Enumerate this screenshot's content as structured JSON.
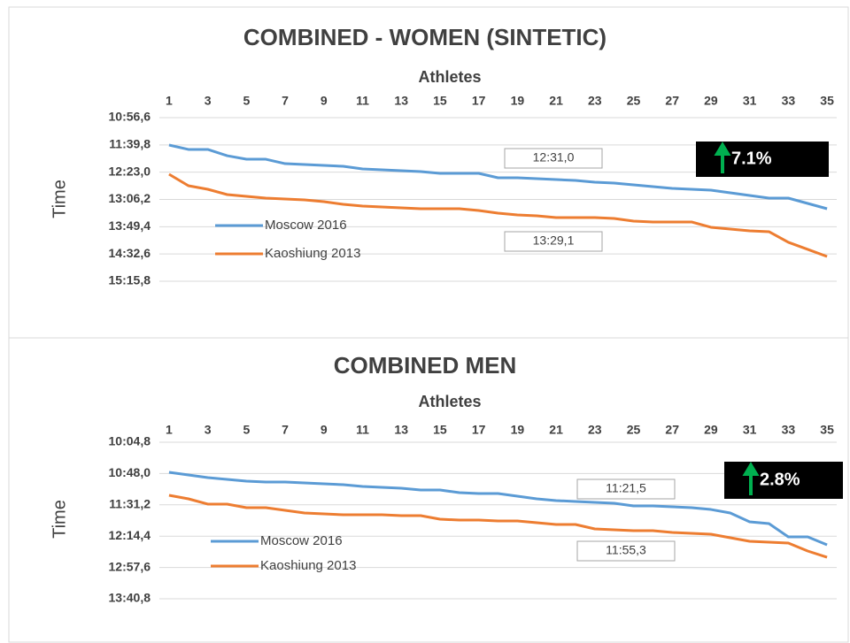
{
  "chart_data": [
    {
      "type": "line",
      "title": "COMBINED - WOMEN (SINTETIC)",
      "x_label": "Athletes",
      "y_label": "Time",
      "categories": [
        1,
        null,
        3,
        null,
        5,
        null,
        7,
        null,
        9,
        null,
        11,
        null,
        13,
        null,
        15,
        null,
        17,
        null,
        19,
        null,
        21,
        null,
        23,
        null,
        25,
        null,
        27,
        null,
        29,
        null,
        31,
        null,
        33,
        null,
        35
      ],
      "series": [
        {
          "name": "Moscow 2016",
          "color": "#5b9bd5",
          "values": [
            700.0,
            707.0,
            707.0,
            716.9,
            722.5,
            722.5,
            729.5,
            730.9,
            732.3,
            733.7,
            737.9,
            739.3,
            740.7,
            742.1,
            744.9,
            744.9,
            744.9,
            751.9,
            751.9,
            753.3,
            754.7,
            756.1,
            758.9,
            760.3,
            763.1,
            765.9,
            768.7,
            770.1,
            771.5,
            775.7,
            779.9,
            784.1,
            784.1,
            792.5,
            800.9
          ]
        },
        {
          "name": "Kaoshiung 2013",
          "color": "#ed7d31",
          "values": [
            746.3,
            764.5,
            770.1,
            778.5,
            781.3,
            784.1,
            785.5,
            786.9,
            789.7,
            793.9,
            796.7,
            798.1,
            799.5,
            800.9,
            800.9,
            800.9,
            803.7,
            807.9,
            810.7,
            812.1,
            814.9,
            814.9,
            814.9,
            816.3,
            820.5,
            821.9,
            821.9,
            821.9,
            830.3,
            833.1,
            835.9,
            837.3,
            854.1,
            865.3,
            876.6
          ]
        }
      ],
      "ylim": [
        656.6,
        915.8
      ],
      "y_reversed": true,
      "grid": true,
      "yticks": [
        {
          "value": 656.6,
          "label": "10:56,6"
        },
        {
          "value": 699.8,
          "label": "11:39,8"
        },
        {
          "value": 743.0,
          "label": "12:23,0"
        },
        {
          "value": 786.2,
          "label": "13:06,2"
        },
        {
          "value": 829.4,
          "label": "13:49,4"
        },
        {
          "value": 872.6,
          "label": "14:32,6"
        },
        {
          "value": 915.8,
          "label": "15:15,8"
        }
      ],
      "annotations": [
        "12:31,0",
        "13:29,1"
      ],
      "badge": "7.1%"
    },
    {
      "type": "line",
      "title": "COMBINED MEN",
      "x_label": "Athletes",
      "y_label": "Time",
      "categories": [
        1,
        null,
        3,
        null,
        5,
        null,
        7,
        null,
        9,
        null,
        11,
        null,
        13,
        null,
        15,
        null,
        17,
        null,
        19,
        null,
        21,
        null,
        23,
        null,
        25,
        null,
        27,
        null,
        29,
        null,
        31,
        null,
        33,
        null,
        35
      ],
      "series": [
        {
          "name": "Moscow 2016",
          "color": "#5b9bd5",
          "values": [
            646.3,
            650.0,
            653.6,
            656.1,
            658.5,
            659.7,
            659.7,
            661.0,
            662.2,
            663.4,
            665.8,
            667.0,
            668.3,
            670.7,
            670.7,
            674.4,
            675.6,
            675.6,
            679.2,
            682.9,
            685.3,
            686.6,
            687.8,
            689.0,
            692.7,
            692.7,
            693.9,
            695.1,
            697.6,
            702.4,
            714.6,
            717.1,
            735.4,
            735.4,
            746.4
          ]
        },
        {
          "name": "Kaoshiung 2013",
          "color": "#ed7d31",
          "values": [
            678.0,
            682.9,
            690.2,
            690.2,
            695.1,
            695.1,
            698.8,
            702.4,
            703.7,
            704.9,
            704.9,
            704.9,
            706.1,
            706.1,
            711.0,
            712.2,
            712.2,
            713.4,
            713.4,
            715.9,
            718.3,
            718.3,
            724.4,
            725.6,
            726.8,
            726.8,
            729.3,
            730.5,
            731.7,
            736.6,
            741.5,
            742.7,
            743.9,
            754.9,
            763.5
          ]
        }
      ],
      "ylim": [
        604.8,
        820.8
      ],
      "y_reversed": true,
      "grid": true,
      "yticks": [
        {
          "value": 604.8,
          "label": "10:04,8"
        },
        {
          "value": 648.0,
          "label": "10:48,0"
        },
        {
          "value": 691.2,
          "label": "11:31,2"
        },
        {
          "value": 734.4,
          "label": "12:14,4"
        },
        {
          "value": 777.6,
          "label": "12:57,6"
        },
        {
          "value": 820.8,
          "label": "13:40,8"
        }
      ],
      "annotations": [
        "11:21,5",
        "11:55,3"
      ],
      "badge": "2.8%"
    }
  ]
}
